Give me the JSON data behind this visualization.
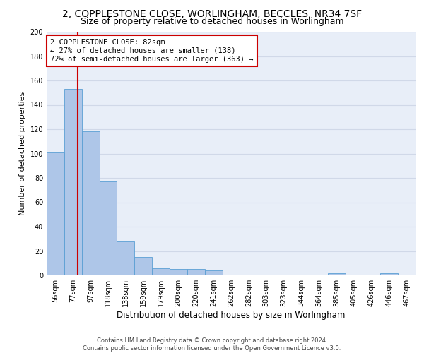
{
  "title1": "2, COPPLESTONE CLOSE, WORLINGHAM, BECCLES, NR34 7SF",
  "title2": "Size of property relative to detached houses in Worlingham",
  "xlabel": "Distribution of detached houses by size in Worlingham",
  "ylabel": "Number of detached properties",
  "categories": [
    "56sqm",
    "77sqm",
    "97sqm",
    "118sqm",
    "138sqm",
    "159sqm",
    "179sqm",
    "200sqm",
    "220sqm",
    "241sqm",
    "262sqm",
    "282sqm",
    "303sqm",
    "323sqm",
    "344sqm",
    "364sqm",
    "385sqm",
    "405sqm",
    "426sqm",
    "446sqm",
    "467sqm"
  ],
  "values": [
    101,
    153,
    118,
    77,
    28,
    15,
    6,
    5,
    5,
    4,
    0,
    0,
    0,
    0,
    0,
    0,
    2,
    0,
    0,
    2,
    0
  ],
  "bar_color": "#aec6e8",
  "bar_edge_color": "#5a9fd4",
  "property_line_color": "#cc0000",
  "annotation_text": "2 COPPLESTONE CLOSE: 82sqm\n← 27% of detached houses are smaller (138)\n72% of semi-detached houses are larger (363) →",
  "annotation_box_color": "#ffffff",
  "annotation_box_edge_color": "#cc0000",
  "ylim": [
    0,
    200
  ],
  "yticks": [
    0,
    20,
    40,
    60,
    80,
    100,
    120,
    140,
    160,
    180,
    200
  ],
  "grid_color": "#d0d8e8",
  "bg_color": "#e8eef8",
  "footer_line1": "Contains HM Land Registry data © Crown copyright and database right 2024.",
  "footer_line2": "Contains public sector information licensed under the Open Government Licence v3.0.",
  "title1_fontsize": 10,
  "title2_fontsize": 9,
  "xlabel_fontsize": 8.5,
  "ylabel_fontsize": 8,
  "tick_fontsize": 7,
  "annotation_fontsize": 7.5,
  "footer_fontsize": 6
}
